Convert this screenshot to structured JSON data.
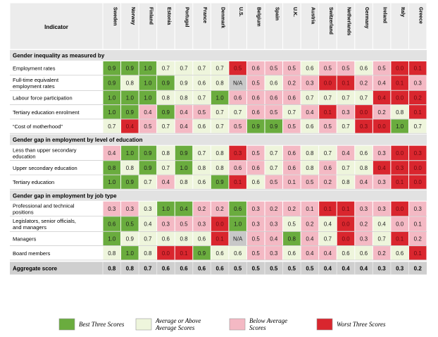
{
  "colors": {
    "best": "#6aac3e",
    "above": "#eef5dc",
    "below": "#f4b9c4",
    "worst": "#d9262e",
    "na": "#c8c8c8",
    "header_bg": "#ececec",
    "section_bg": "#e2e2e2",
    "aggregate_bg": "#cfcfcf"
  },
  "chart_data": {
    "type": "table",
    "corner_label": "Indicator",
    "countries": [
      "Sweden",
      "Norway",
      "Finland",
      "Estonia",
      "Portugal",
      "France",
      "Denmark",
      "U.S.",
      "Belgium",
      "Spain",
      "U.K.",
      "Austria",
      "Switzerland",
      "Netherlands",
      "Germany",
      "Ireland",
      "Italy",
      "Greece"
    ],
    "sections": [
      {
        "title": "Gender inequality as measured by",
        "rows": [
          {
            "label": [
              "Employment rates"
            ],
            "values": [
              "0.9",
              "0.9",
              "1.0",
              "0.7",
              "0.7",
              "0.7",
              "0.7",
              "0.5",
              "0.6",
              "0.5",
              "0.5",
              "0.6",
              "0.5",
              "0.5",
              "0.6",
              "0.5",
              "0.0",
              "0.1"
            ],
            "classes": [
              "best",
              "best",
              "best",
              "above",
              "above",
              "above",
              "above",
              "worst",
              "below",
              "below",
              "below",
              "above",
              "below",
              "below",
              "above",
              "below",
              "worst",
              "worst"
            ]
          },
          {
            "label": [
              "Full-time equivalent",
              "employment rates"
            ],
            "values": [
              "0.9",
              "0.8",
              "1.0",
              "0.9",
              "0.9",
              "0.6",
              "0.8",
              "N/A",
              "0.5",
              "0.6",
              "0.2",
              "0.3",
              "0.0",
              "0.1",
              "0.2",
              "0.4",
              "0.1",
              "0.3"
            ],
            "classes": [
              "best",
              "above",
              "best",
              "best",
              "above",
              "above",
              "above",
              "na",
              "below",
              "above",
              "below",
              "below",
              "worst",
              "worst",
              "below",
              "below",
              "worst",
              "below"
            ]
          },
          {
            "label": [
              "Labour force participation"
            ],
            "values": [
              "1.0",
              "1.0",
              "1.0",
              "0.8",
              "0.8",
              "0.7",
              "1.0",
              "0.6",
              "0.6",
              "0.6",
              "0.6",
              "0.7",
              "0.7",
              "0.7",
              "0.7",
              "0.4",
              "0.0",
              "0.2"
            ],
            "classes": [
              "best",
              "best",
              "best",
              "above",
              "above",
              "above",
              "best",
              "below",
              "below",
              "below",
              "below",
              "above",
              "above",
              "above",
              "above",
              "worst",
              "worst",
              "worst"
            ]
          },
          {
            "label": [
              "Tertiary education enrolment"
            ],
            "values": [
              "1.0",
              "0.9",
              "0.4",
              "0.9",
              "0.4",
              "0.5",
              "0.7",
              "0.7",
              "0.6",
              "0.5",
              "0.7",
              "0.4",
              "0.1",
              "0.3",
              "0.0",
              "0.2",
              "0.8",
              "0.1"
            ],
            "classes": [
              "best",
              "best",
              "below",
              "best",
              "below",
              "below",
              "above",
              "above",
              "below",
              "below",
              "above",
              "below",
              "worst",
              "below",
              "worst",
              "below",
              "above",
              "worst"
            ]
          },
          {
            "label": [
              "“Cost of motherhood”"
            ],
            "values": [
              "0.7",
              "0.4",
              "0.5",
              "0.7",
              "0.4",
              "0.6",
              "0.7",
              "0.5",
              "0.9",
              "0.9",
              "0.5",
              "0.6",
              "0.5",
              "0.7",
              "0.3",
              "0.0",
              "1.0",
              "0.7"
            ],
            "classes": [
              "above",
              "worst",
              "below",
              "above",
              "below",
              "above",
              "above",
              "below",
              "best",
              "best",
              "below",
              "above",
              "below",
              "above",
              "worst",
              "worst",
              "best",
              "above"
            ]
          }
        ]
      },
      {
        "title": "Gender gap in employment by level of education",
        "rows": [
          {
            "label": [
              "Less than upper secondary",
              "education"
            ],
            "values": [
              "0.4",
              "1.0",
              "0.9",
              "0.8",
              "0.9",
              "0.7",
              "0.8",
              "0.3",
              "0.5",
              "0.7",
              "0.6",
              "0.8",
              "0.7",
              "0.4",
              "0.6",
              "0.3",
              "0.0",
              "0.3"
            ],
            "classes": [
              "below",
              "best",
              "best",
              "above",
              "best",
              "above",
              "above",
              "worst",
              "below",
              "above",
              "below",
              "above",
              "above",
              "below",
              "above",
              "below",
              "worst",
              "worst"
            ]
          },
          {
            "label": [
              "Upper secondary education"
            ],
            "values": [
              "0.8",
              "0.8",
              "0.9",
              "0.7",
              "1.0",
              "0.8",
              "0.8",
              "0.6",
              "0.6",
              "0.7",
              "0.6",
              "0.8",
              "0.6",
              "0.7",
              "0.8",
              "0.4",
              "0.3",
              "0.0"
            ],
            "classes": [
              "best",
              "above",
              "best",
              "above",
              "best",
              "above",
              "above",
              "below",
              "below",
              "above",
              "below",
              "above",
              "below",
              "above",
              "above",
              "worst",
              "worst",
              "worst"
            ]
          },
          {
            "label": [
              "Tertiary education"
            ],
            "values": [
              "1.0",
              "0.9",
              "0.7",
              "0.4",
              "0.8",
              "0.6",
              "0.9",
              "0.1",
              "0.6",
              "0.5",
              "0.1",
              "0.5",
              "0.2",
              "0.8",
              "0.4",
              "0.3",
              "0.1",
              "0.0"
            ],
            "classes": [
              "best",
              "best",
              "above",
              "below",
              "above",
              "above",
              "best",
              "worst",
              "above",
              "below",
              "below",
              "below",
              "below",
              "above",
              "below",
              "below",
              "worst",
              "worst"
            ]
          }
        ]
      },
      {
        "title": "Gender gap in employment by job type",
        "rows": [
          {
            "label": [
              "Professional and technical",
              "positions"
            ],
            "values": [
              "0.3",
              "0.3",
              "0.3",
              "1.0",
              "0.4",
              "0.2",
              "0.2",
              "0.6",
              "0.3",
              "0.2",
              "0.2",
              "0.1",
              "0.1",
              "0.1",
              "0.3",
              "0.3",
              "0.0",
              "0.3"
            ],
            "classes": [
              "below",
              "below",
              "above",
              "best",
              "best",
              "below",
              "below",
              "best",
              "below",
              "below",
              "below",
              "below",
              "worst",
              "worst",
              "below",
              "below",
              "worst",
              "below"
            ]
          },
          {
            "label": [
              "Legislators, senior officials,",
              "and managers"
            ],
            "values": [
              "0.6",
              "0.5",
              "0.4",
              "0.3",
              "0.5",
              "0.3",
              "0.0",
              "1.0",
              "0.3",
              "0.3",
              "0.5",
              "0.2",
              "0.4",
              "0.0",
              "0.2",
              "0.4",
              "0.0",
              "0.1"
            ],
            "classes": [
              "best",
              "best",
              "above",
              "below",
              "below",
              "below",
              "worst",
              "best",
              "below",
              "below",
              "above",
              "below",
              "above",
              "worst",
              "below",
              "above",
              "below",
              "below"
            ]
          },
          {
            "label": [
              "Managers"
            ],
            "values": [
              "1.0",
              "0.9",
              "0.7",
              "0.6",
              "0.8",
              "0.6",
              "0.1",
              "N/A",
              "0.5",
              "0.4",
              "0.8",
              "0.4",
              "0.7",
              "0.0",
              "0.3",
              "0.7",
              "0.1",
              "0.2"
            ],
            "classes": [
              "best",
              "above",
              "above",
              "above",
              "above",
              "above",
              "worst",
              "na",
              "below",
              "below",
              "best",
              "below",
              "above",
              "worst",
              "below",
              "above",
              "worst",
              "below"
            ]
          },
          {
            "label": [
              "Board members"
            ],
            "values": [
              "0.8",
              "1.0",
              "0.8",
              "0.0",
              "0.1",
              "0.9",
              "0.6",
              "0.6",
              "0.5",
              "0.3",
              "0.6",
              "0.4",
              "0.4",
              "0.6",
              "0.6",
              "0.2",
              "0.6",
              "0.1"
            ],
            "classes": [
              "above",
              "best",
              "above",
              "worst",
              "worst",
              "best",
              "above",
              "above",
              "below",
              "below",
              "above",
              "below",
              "below",
              "above",
              "above",
              "below",
              "above",
              "worst"
            ]
          }
        ]
      }
    ],
    "aggregate": {
      "label": "Aggregate score",
      "values": [
        "0.8",
        "0.8",
        "0.7",
        "0.6",
        "0.6",
        "0.6",
        "0.6",
        "0.5",
        "0.5",
        "0.5",
        "0.5",
        "0.5",
        "0.4",
        "0.4",
        "0.4",
        "0.3",
        "0.3",
        "0.2"
      ]
    },
    "legend": [
      {
        "key": "best",
        "label": [
          "Best Three Scores"
        ]
      },
      {
        "key": "above",
        "label": [
          "Average or Above",
          "Average Scores"
        ]
      },
      {
        "key": "below",
        "label": [
          "Below Average",
          "Scores"
        ]
      },
      {
        "key": "worst",
        "label": [
          "Worst Three Scores"
        ]
      }
    ]
  }
}
